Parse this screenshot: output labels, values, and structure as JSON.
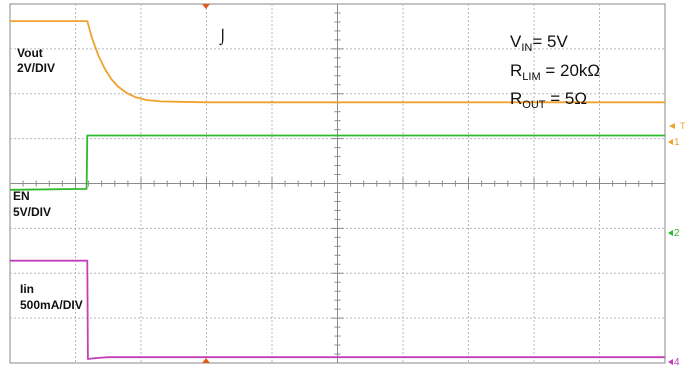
{
  "chart_data": {
    "type": "line",
    "title": "",
    "xlabel": "",
    "ylabel": "",
    "grid": true,
    "divisions": {
      "x": 10,
      "y": 8
    },
    "xlim": [
      0,
      10
    ],
    "ylim": [
      0,
      8
    ],
    "channels": [
      {
        "id": "ch1",
        "name": "Vout",
        "scale": "2V/DIV",
        "color": "#f0a22e",
        "marker_label": "1",
        "x": [
          0,
          1.18,
          1.25,
          1.35,
          1.45,
          1.55,
          1.65,
          1.78,
          1.92,
          2.08,
          2.3,
          2.6,
          3.0,
          10
        ],
        "y": [
          7.62,
          7.62,
          7.25,
          6.85,
          6.55,
          6.32,
          6.16,
          6.02,
          5.92,
          5.86,
          5.83,
          5.82,
          5.81,
          5.81
        ]
      },
      {
        "id": "ch2",
        "name": "EN",
        "scale": "5V/DIV",
        "color": "#2fb82c",
        "marker_label": "2",
        "x": [
          0,
          1.17,
          1.18,
          10
        ],
        "y": [
          3.86,
          3.88,
          5.07,
          5.07
        ]
      },
      {
        "id": "ch4",
        "name": "Iin",
        "scale": "500mA/DIV",
        "color": "#c33fb7",
        "marker_label": "4",
        "x": [
          0,
          1.18,
          1.19,
          1.3,
          1.5,
          10
        ],
        "y": [
          2.28,
          2.28,
          0.09,
          0.11,
          0.13,
          0.13
        ]
      }
    ]
  },
  "conditions": [
    {
      "main": "V",
      "sub": "IN",
      "rest": "= 5V"
    },
    {
      "main": "R",
      "sub": "LIM",
      "rest": " = 20kΩ"
    },
    {
      "main": "R",
      "sub": "OUT",
      "rest": " = 5Ω"
    }
  ],
  "trigger_marker": "T",
  "cursor_glyph": "⌡"
}
